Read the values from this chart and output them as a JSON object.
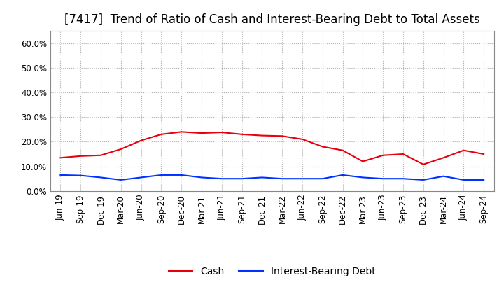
{
  "title": "[7417]  Trend of Ratio of Cash and Interest-Bearing Debt to Total Assets",
  "x_labels": [
    "Jun-19",
    "Sep-19",
    "Dec-19",
    "Mar-20",
    "Jun-20",
    "Sep-20",
    "Dec-20",
    "Mar-21",
    "Jun-21",
    "Sep-21",
    "Dec-21",
    "Mar-22",
    "Jun-22",
    "Sep-22",
    "Dec-22",
    "Mar-23",
    "Jun-23",
    "Sep-23",
    "Dec-23",
    "Mar-24",
    "Jun-24",
    "Sep-24"
  ],
  "cash": [
    13.5,
    14.2,
    14.5,
    17.0,
    20.5,
    23.0,
    24.0,
    23.5,
    23.8,
    23.0,
    22.5,
    22.3,
    21.0,
    18.0,
    16.5,
    12.0,
    14.5,
    15.0,
    10.8,
    13.5,
    16.5,
    15.0
  ],
  "interest_bearing_debt": [
    6.5,
    6.3,
    5.5,
    4.5,
    5.5,
    6.5,
    6.5,
    5.5,
    5.0,
    5.0,
    5.5,
    5.0,
    5.0,
    5.0,
    6.5,
    5.5,
    5.0,
    5.0,
    4.5,
    6.0,
    4.5,
    4.5
  ],
  "cash_color": "#e8000d",
  "debt_color": "#0032ff",
  "background_color": "#ffffff",
  "plot_bg_color": "#ffffff",
  "grid_color": "#b0b0b0",
  "ylim": [
    0,
    65
  ],
  "yticks": [
    0.0,
    10.0,
    20.0,
    30.0,
    40.0,
    50.0,
    60.0
  ],
  "legend_cash": "Cash",
  "legend_debt": "Interest-Bearing Debt",
  "title_fontsize": 12,
  "tick_fontsize": 8.5,
  "legend_fontsize": 10
}
